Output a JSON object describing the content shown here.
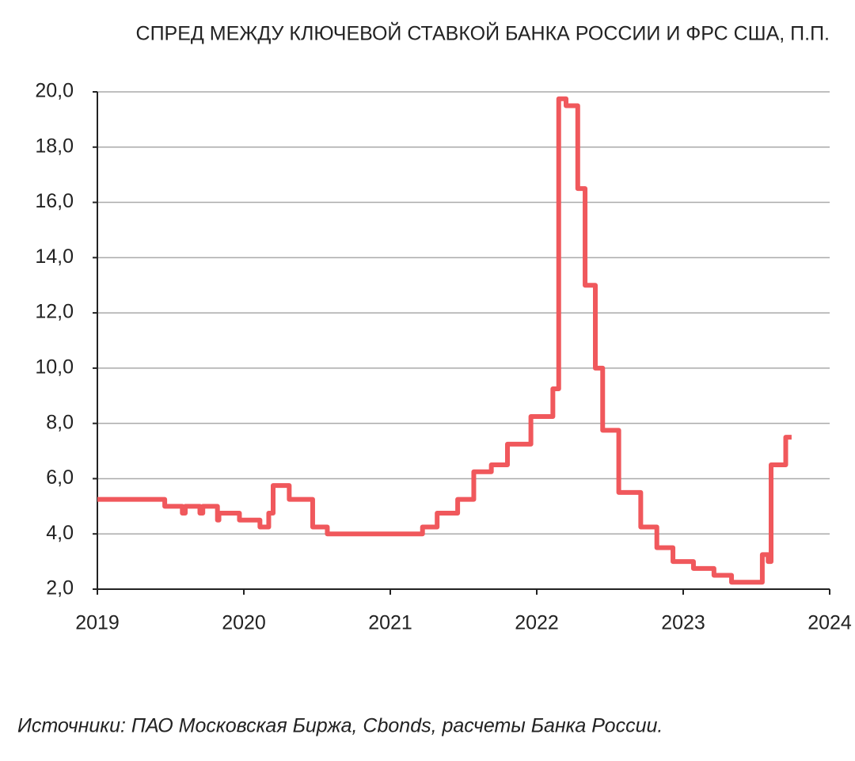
{
  "chart_data": {
    "type": "line",
    "title": "СПРЕД МЕЖДУ КЛЮЧЕВОЙ СТАВКОЙ БАНКА РОССИИ И ФРС США, П.П.",
    "source": "Источники: ПАО Московская Биржа, Cbonds, расчеты Банка России.",
    "color": "#f0585c",
    "x": [
      2019.0,
      2019.46,
      2019.46,
      2019.58,
      2019.58,
      2019.6,
      2019.6,
      2019.7,
      2019.7,
      2019.72,
      2019.72,
      2019.82,
      2019.82,
      2019.83,
      2019.83,
      2019.97,
      2019.97,
      2020.11,
      2020.11,
      2020.17,
      2020.17,
      2020.2,
      2020.2,
      2020.31,
      2020.31,
      2020.47,
      2020.47,
      2020.57,
      2020.57,
      2021.22,
      2021.22,
      2021.32,
      2021.32,
      2021.46,
      2021.46,
      2021.57,
      2021.57,
      2021.69,
      2021.69,
      2021.8,
      2021.8,
      2021.96,
      2021.96,
      2022.11,
      2022.11,
      2022.15,
      2022.15,
      2022.2,
      2022.2,
      2022.28,
      2022.28,
      2022.33,
      2022.33,
      2022.4,
      2022.4,
      2022.45,
      2022.45,
      2022.56,
      2022.56,
      2022.71,
      2022.71,
      2022.82,
      2022.82,
      2022.93,
      2022.93,
      2023.07,
      2023.07,
      2023.21,
      2023.21,
      2023.33,
      2023.33,
      2023.54,
      2023.54,
      2023.58,
      2023.58,
      2023.6,
      2023.6,
      2023.7,
      2023.7,
      2023.74
    ],
    "values": [
      5.25,
      5.25,
      5.0,
      5.0,
      4.75,
      4.75,
      5.0,
      5.0,
      4.75,
      4.75,
      5.0,
      5.0,
      4.5,
      4.5,
      4.75,
      4.75,
      4.5,
      4.5,
      4.25,
      4.25,
      4.75,
      4.75,
      5.75,
      5.75,
      5.25,
      5.25,
      4.25,
      4.25,
      4.0,
      4.0,
      4.25,
      4.25,
      4.75,
      4.75,
      5.25,
      5.25,
      6.25,
      6.25,
      6.5,
      6.5,
      7.25,
      7.25,
      8.25,
      8.25,
      9.25,
      9.25,
      19.75,
      19.75,
      19.5,
      19.5,
      16.5,
      16.5,
      13.0,
      13.0,
      10.0,
      10.0,
      7.75,
      7.75,
      5.5,
      5.5,
      4.25,
      4.25,
      3.5,
      3.5,
      3.0,
      3.0,
      2.75,
      2.75,
      2.5,
      2.5,
      2.25,
      2.25,
      3.25,
      3.25,
      3.0,
      3.0,
      6.5,
      6.5,
      7.5,
      7.5
    ],
    "xlim": [
      2019,
      2024
    ],
    "xticks": [
      2019,
      2020,
      2021,
      2022,
      2023,
      2024
    ],
    "ylim": [
      2,
      20
    ],
    "yticks": [
      {
        "value": 2,
        "label": "2,0"
      },
      {
        "value": 4,
        "label": "4,0"
      },
      {
        "value": 6,
        "label": "6,0"
      },
      {
        "value": 8,
        "label": "8,0"
      },
      {
        "value": 10,
        "label": "10,0"
      },
      {
        "value": 12,
        "label": "12,0"
      },
      {
        "value": 14,
        "label": "14,0"
      },
      {
        "value": 16,
        "label": "16,0"
      },
      {
        "value": 18,
        "label": "18,0"
      },
      {
        "value": 20,
        "label": "20,0"
      }
    ],
    "grid": true
  }
}
